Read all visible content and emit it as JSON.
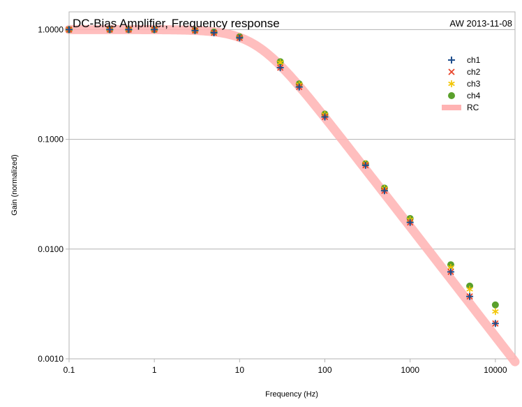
{
  "chart_data": {
    "type": "scatter",
    "title": "DC-Bias Amplifier, Frequency response",
    "annotation": "AW 2013-11-08",
    "xlabel": "Frequency (Hz)",
    "ylabel": "Gain (normalized)",
    "x_scale": "log",
    "y_scale": "log",
    "xlim": [
      0.1,
      17000
    ],
    "ylim": [
      0.001,
      1.45
    ],
    "grid": "horizontal major",
    "legend_position": "top-right",
    "x_ticks": [
      {
        "value": 0.1,
        "label": "0.1"
      },
      {
        "value": 1,
        "label": "1"
      },
      {
        "value": 10,
        "label": "10"
      },
      {
        "value": 100,
        "label": "100"
      },
      {
        "value": 1000,
        "label": "1000"
      },
      {
        "value": 10000,
        "label": "10000"
      }
    ],
    "y_ticks": [
      {
        "value": 0.001,
        "label": "0.0010"
      },
      {
        "value": 0.01,
        "label": "0.0100"
      },
      {
        "value": 0.1,
        "label": "0.1000"
      },
      {
        "value": 1,
        "label": "1.0000"
      }
    ],
    "x": [
      0.1,
      0.3,
      0.5,
      1,
      3,
      5,
      10,
      30,
      50,
      100,
      300,
      500,
      1000,
      3000,
      5000,
      10000
    ],
    "series": [
      {
        "name": "ch1",
        "marker": "plus",
        "color": "#1f4e8c",
        "values": [
          1.0,
          1.0,
          1.0,
          1.0,
          0.98,
          0.935,
          0.84,
          0.45,
          0.3,
          0.16,
          0.058,
          0.034,
          0.0175,
          0.0062,
          0.0037,
          0.0021
        ]
      },
      {
        "name": "ch2",
        "marker": "x",
        "color": "#e8452b",
        "values": [
          1.0,
          1.0,
          1.0,
          1.0,
          0.98,
          0.935,
          0.84,
          0.45,
          0.3,
          0.16,
          0.058,
          0.034,
          0.0175,
          0.0062,
          0.0037,
          0.0021
        ]
      },
      {
        "name": "ch3",
        "marker": "asterisk",
        "color": "#f2c500",
        "values": [
          1.0,
          1.0,
          1.0,
          1.0,
          0.98,
          0.945,
          0.855,
          0.5,
          0.315,
          0.168,
          0.06,
          0.0355,
          0.0185,
          0.0068,
          0.0043,
          0.0027
        ]
      },
      {
        "name": "ch4",
        "marker": "circle",
        "color": "#5aa02c",
        "values": [
          1.0,
          1.0,
          1.0,
          1.0,
          0.985,
          0.95,
          0.86,
          0.51,
          0.32,
          0.17,
          0.06,
          0.036,
          0.019,
          0.0072,
          0.0046,
          0.0031
        ]
      },
      {
        "name": "RC",
        "type": "line",
        "color": "#ffb3b3",
        "cutoff_hz": 16,
        "x": [
          0.1,
          1,
          3,
          5,
          10,
          16,
          30,
          50,
          100,
          300,
          1000,
          3000,
          10000,
          17000
        ],
        "values": [
          1.0,
          0.998,
          0.9829,
          0.9545,
          0.848,
          0.7071,
          0.4706,
          0.3048,
          0.158,
          0.0533,
          0.016,
          0.00533,
          0.0016,
          0.00094
        ]
      }
    ]
  }
}
